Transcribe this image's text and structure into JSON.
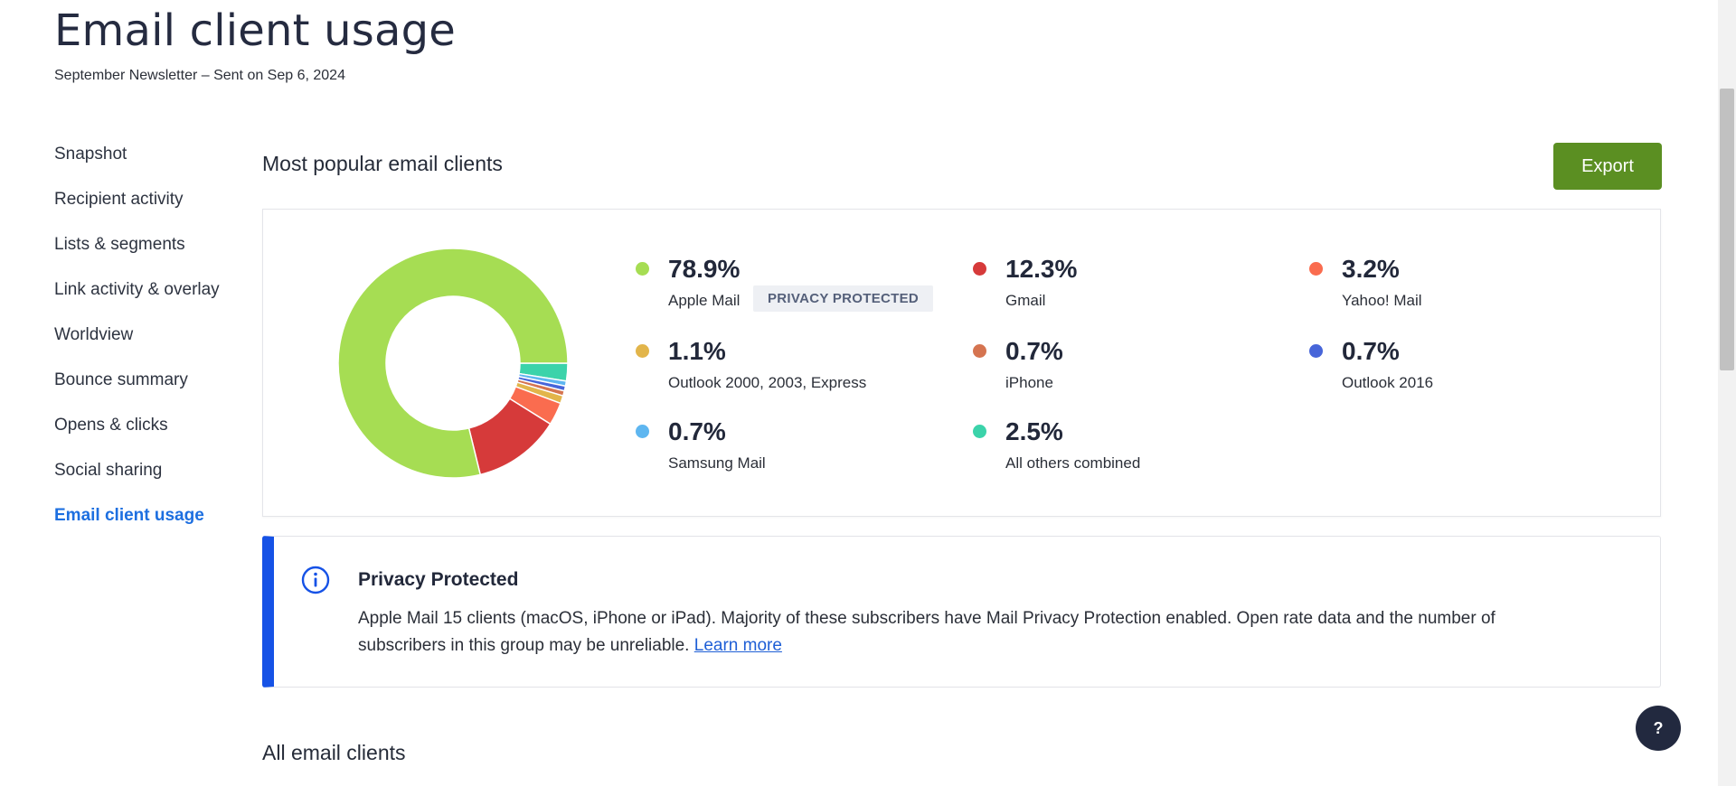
{
  "header": {
    "title": "Email client usage",
    "subtitle": "September Newsletter – Sent on Sep 6, 2024"
  },
  "sidebar": {
    "items": [
      {
        "label": "Snapshot"
      },
      {
        "label": "Recipient activity"
      },
      {
        "label": "Lists & segments"
      },
      {
        "label": "Link activity & overlay"
      },
      {
        "label": "Worldview"
      },
      {
        "label": "Bounce summary"
      },
      {
        "label": "Opens & clicks"
      },
      {
        "label": "Social sharing"
      },
      {
        "label": "Email client usage",
        "active": true
      }
    ]
  },
  "section": {
    "title": "Most popular email clients",
    "export_label": "Export"
  },
  "chart_data": {
    "type": "pie",
    "donut": true,
    "series": [
      {
        "name": "Apple Mail",
        "value": 78.9,
        "display": "78.9%",
        "color": "#a6dd53"
      },
      {
        "name": "Gmail",
        "value": 12.3,
        "display": "12.3%",
        "color": "#d63a3a"
      },
      {
        "name": "Yahoo! Mail",
        "value": 3.2,
        "display": "3.2%",
        "color": "#fa6c4f"
      },
      {
        "name": "Outlook 2000, 2003, Express",
        "value": 1.1,
        "display": "1.1%",
        "color": "#e2b54b"
      },
      {
        "name": "iPhone",
        "value": 0.7,
        "display": "0.7%",
        "color": "#d57450"
      },
      {
        "name": "Outlook 2016",
        "value": 0.7,
        "display": "0.7%",
        "color": "#4765d9"
      },
      {
        "name": "Samsung Mail",
        "value": 0.7,
        "display": "0.7%",
        "color": "#5eb6f0"
      },
      {
        "name": "All others combined",
        "value": 2.5,
        "display": "2.5%",
        "color": "#3bd3aa"
      }
    ],
    "badge": "PRIVACY PROTECTED"
  },
  "info": {
    "title": "Privacy Protected",
    "text": "Apple Mail 15 clients (macOS, iPhone or iPad). Majority of these subscribers have Mail Privacy Protection enabled. Open rate data and the number of subscribers in this group may be unreliable.",
    "link": "Learn more"
  },
  "all_clients_title": "All email clients",
  "help_label": "?",
  "colors": {
    "accent": "#1d6fe0",
    "export": "#5b8f22",
    "info_bar": "#1652e6"
  }
}
